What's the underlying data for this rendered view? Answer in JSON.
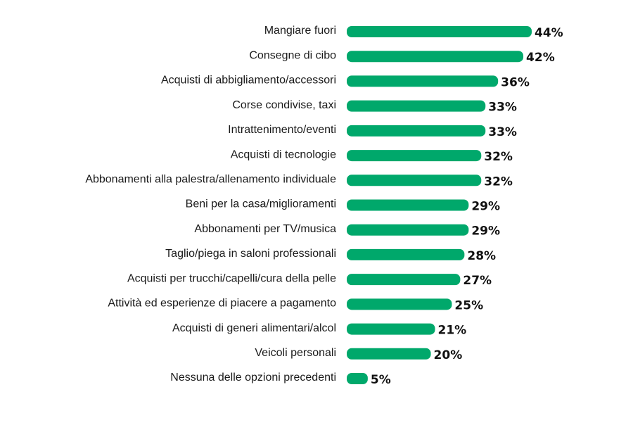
{
  "colors": {
    "bar": "#00A86B",
    "label": "#1a1a1a",
    "value": "#111111",
    "background": "#ffffff"
  },
  "chart_data": {
    "type": "bar",
    "orientation": "horizontal",
    "title": "",
    "xlabel": "",
    "ylabel": "",
    "grid": false,
    "legend": "none",
    "unit": "%",
    "xlim": [
      0,
      44
    ],
    "categories": [
      "Mangiare fuori",
      "Consegne di cibo",
      "Acquisti di abbigliamento/accessori",
      "Corse condivise, taxi",
      "Intrattenimento/eventi",
      "Acquisti di tecnologie",
      "Abbonamenti alla palestra/allenamento individuale",
      "Beni per la casa/miglioramenti",
      "Abbonamenti per TV/musica",
      "Taglio/piega in saloni professionali",
      "Acquisti per trucchi/capelli/cura della pelle",
      "Attività ed esperienze di piacere a pagamento",
      "Acquisti di generi alimentari/alcol",
      "Veicoli personali",
      "Nessuna delle opzioni precedenti"
    ],
    "values": [
      44,
      42,
      36,
      33,
      33,
      32,
      32,
      29,
      29,
      28,
      27,
      25,
      21,
      20,
      5
    ],
    "value_labels": [
      "44%",
      "42%",
      "36%",
      "33%",
      "33%",
      "32%",
      "32%",
      "29%",
      "29%",
      "28%",
      "27%",
      "25%",
      "21%",
      "20%",
      "5%"
    ]
  }
}
